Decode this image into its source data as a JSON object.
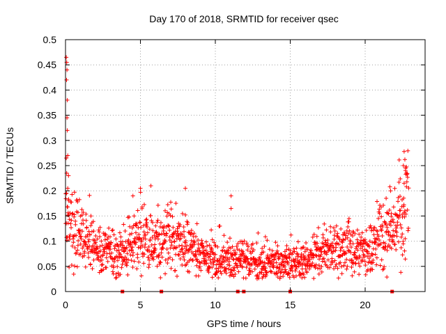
{
  "chart_data": {
    "type": "scatter",
    "title": "Day 170 of 2018, SRMTID for receiver qsec",
    "xlabel": "GPS time / hours",
    "ylabel": "SRMTID / TECUs",
    "xlim": [
      0,
      24
    ],
    "ylim": [
      0,
      0.5
    ],
    "xticks": [
      0,
      5,
      10,
      15,
      20
    ],
    "xtick_labels": [
      "0",
      "5",
      "10",
      "15",
      "20"
    ],
    "yticks": [
      0,
      0.05,
      0.1,
      0.15,
      0.2,
      0.25,
      0.3,
      0.35,
      0.4,
      0.45,
      0.5
    ],
    "ytick_labels": [
      "0",
      "0.05",
      "0.1",
      "0.15",
      "0.2",
      "0.25",
      "0.3",
      "0.35",
      "0.4",
      "0.45",
      "0.5"
    ],
    "grid": true,
    "marker": "+",
    "color": "#ff0000",
    "x_data_range": [
      0,
      22.9
    ],
    "seed": 170,
    "zero_markers_x": [
      3.8,
      6.4,
      11.5,
      11.9,
      15.0,
      21.8
    ],
    "spike_points": [
      {
        "x": 0.05,
        "y": 0.465
      },
      {
        "x": 0.08,
        "y": 0.455
      },
      {
        "x": 0.1,
        "y": 0.44
      },
      {
        "x": 0.07,
        "y": 0.42
      },
      {
        "x": 0.12,
        "y": 0.38
      },
      {
        "x": 0.1,
        "y": 0.345
      },
      {
        "x": 0.12,
        "y": 0.32
      },
      {
        "x": 0.15,
        "y": 0.27
      },
      {
        "x": 0.05,
        "y": 0.265
      },
      {
        "x": 0.08,
        "y": 0.235
      },
      {
        "x": 0.2,
        "y": 0.23
      },
      {
        "x": 0.15,
        "y": 0.205
      },
      {
        "x": 22.6,
        "y": 0.278
      },
      {
        "x": 22.65,
        "y": 0.262
      },
      {
        "x": 22.7,
        "y": 0.245
      },
      {
        "x": 22.55,
        "y": 0.25
      },
      {
        "x": 22.75,
        "y": 0.235
      },
      {
        "x": 22.6,
        "y": 0.215
      },
      {
        "x": 11.05,
        "y": 0.19
      },
      {
        "x": 11.05,
        "y": 0.165
      },
      {
        "x": 8.0,
        "y": 0.205
      },
      {
        "x": 5.0,
        "y": 0.205
      },
      {
        "x": 5.7,
        "y": 0.21
      },
      {
        "x": 4.5,
        "y": 0.19
      },
      {
        "x": 21.7,
        "y": 0.2
      },
      {
        "x": 21.4,
        "y": 0.185
      }
    ],
    "baseline": [
      {
        "x": 0.0,
        "y": 0.15
      },
      {
        "x": 0.5,
        "y": 0.125
      },
      {
        "x": 1.0,
        "y": 0.11
      },
      {
        "x": 2.0,
        "y": 0.09
      },
      {
        "x": 3.0,
        "y": 0.075
      },
      {
        "x": 4.0,
        "y": 0.08
      },
      {
        "x": 5.0,
        "y": 0.11
      },
      {
        "x": 6.0,
        "y": 0.09
      },
      {
        "x": 7.0,
        "y": 0.11
      },
      {
        "x": 8.0,
        "y": 0.095
      },
      {
        "x": 9.0,
        "y": 0.075
      },
      {
        "x": 10.0,
        "y": 0.065
      },
      {
        "x": 11.0,
        "y": 0.06
      },
      {
        "x": 12.0,
        "y": 0.06
      },
      {
        "x": 13.0,
        "y": 0.055
      },
      {
        "x": 14.0,
        "y": 0.055
      },
      {
        "x": 15.0,
        "y": 0.055
      },
      {
        "x": 16.0,
        "y": 0.06
      },
      {
        "x": 17.0,
        "y": 0.07
      },
      {
        "x": 18.0,
        "y": 0.08
      },
      {
        "x": 19.0,
        "y": 0.085
      },
      {
        "x": 20.0,
        "y": 0.085
      },
      {
        "x": 21.0,
        "y": 0.1
      },
      {
        "x": 22.0,
        "y": 0.12
      },
      {
        "x": 22.9,
        "y": 0.18
      }
    ]
  }
}
